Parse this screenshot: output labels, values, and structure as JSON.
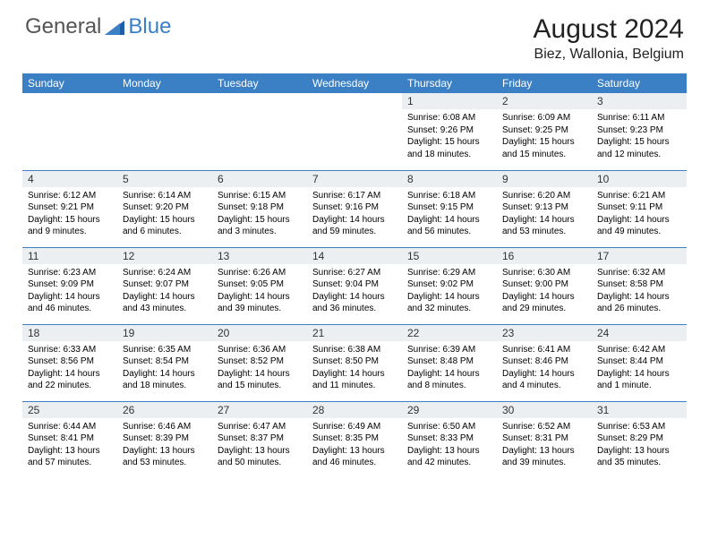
{
  "logo": {
    "text1": "General",
    "text2": "Blue"
  },
  "title": "August 2024",
  "location": "Biez, Wallonia, Belgium",
  "colors": {
    "header_bg": "#3b7fc4",
    "header_text": "#ffffff",
    "daynum_bg": "#eceff1",
    "border": "#3b7fc4",
    "page_bg": "#ffffff",
    "text": "#000000"
  },
  "weekdays": [
    "Sunday",
    "Monday",
    "Tuesday",
    "Wednesday",
    "Thursday",
    "Friday",
    "Saturday"
  ],
  "weeks": [
    [
      {
        "n": "",
        "sr": "",
        "ss": "",
        "dl": ""
      },
      {
        "n": "",
        "sr": "",
        "ss": "",
        "dl": ""
      },
      {
        "n": "",
        "sr": "",
        "ss": "",
        "dl": ""
      },
      {
        "n": "",
        "sr": "",
        "ss": "",
        "dl": ""
      },
      {
        "n": "1",
        "sr": "Sunrise: 6:08 AM",
        "ss": "Sunset: 9:26 PM",
        "dl": "Daylight: 15 hours and 18 minutes."
      },
      {
        "n": "2",
        "sr": "Sunrise: 6:09 AM",
        "ss": "Sunset: 9:25 PM",
        "dl": "Daylight: 15 hours and 15 minutes."
      },
      {
        "n": "3",
        "sr": "Sunrise: 6:11 AM",
        "ss": "Sunset: 9:23 PM",
        "dl": "Daylight: 15 hours and 12 minutes."
      }
    ],
    [
      {
        "n": "4",
        "sr": "Sunrise: 6:12 AM",
        "ss": "Sunset: 9:21 PM",
        "dl": "Daylight: 15 hours and 9 minutes."
      },
      {
        "n": "5",
        "sr": "Sunrise: 6:14 AM",
        "ss": "Sunset: 9:20 PM",
        "dl": "Daylight: 15 hours and 6 minutes."
      },
      {
        "n": "6",
        "sr": "Sunrise: 6:15 AM",
        "ss": "Sunset: 9:18 PM",
        "dl": "Daylight: 15 hours and 3 minutes."
      },
      {
        "n": "7",
        "sr": "Sunrise: 6:17 AM",
        "ss": "Sunset: 9:16 PM",
        "dl": "Daylight: 14 hours and 59 minutes."
      },
      {
        "n": "8",
        "sr": "Sunrise: 6:18 AM",
        "ss": "Sunset: 9:15 PM",
        "dl": "Daylight: 14 hours and 56 minutes."
      },
      {
        "n": "9",
        "sr": "Sunrise: 6:20 AM",
        "ss": "Sunset: 9:13 PM",
        "dl": "Daylight: 14 hours and 53 minutes."
      },
      {
        "n": "10",
        "sr": "Sunrise: 6:21 AM",
        "ss": "Sunset: 9:11 PM",
        "dl": "Daylight: 14 hours and 49 minutes."
      }
    ],
    [
      {
        "n": "11",
        "sr": "Sunrise: 6:23 AM",
        "ss": "Sunset: 9:09 PM",
        "dl": "Daylight: 14 hours and 46 minutes."
      },
      {
        "n": "12",
        "sr": "Sunrise: 6:24 AM",
        "ss": "Sunset: 9:07 PM",
        "dl": "Daylight: 14 hours and 43 minutes."
      },
      {
        "n": "13",
        "sr": "Sunrise: 6:26 AM",
        "ss": "Sunset: 9:05 PM",
        "dl": "Daylight: 14 hours and 39 minutes."
      },
      {
        "n": "14",
        "sr": "Sunrise: 6:27 AM",
        "ss": "Sunset: 9:04 PM",
        "dl": "Daylight: 14 hours and 36 minutes."
      },
      {
        "n": "15",
        "sr": "Sunrise: 6:29 AM",
        "ss": "Sunset: 9:02 PM",
        "dl": "Daylight: 14 hours and 32 minutes."
      },
      {
        "n": "16",
        "sr": "Sunrise: 6:30 AM",
        "ss": "Sunset: 9:00 PM",
        "dl": "Daylight: 14 hours and 29 minutes."
      },
      {
        "n": "17",
        "sr": "Sunrise: 6:32 AM",
        "ss": "Sunset: 8:58 PM",
        "dl": "Daylight: 14 hours and 26 minutes."
      }
    ],
    [
      {
        "n": "18",
        "sr": "Sunrise: 6:33 AM",
        "ss": "Sunset: 8:56 PM",
        "dl": "Daylight: 14 hours and 22 minutes."
      },
      {
        "n": "19",
        "sr": "Sunrise: 6:35 AM",
        "ss": "Sunset: 8:54 PM",
        "dl": "Daylight: 14 hours and 18 minutes."
      },
      {
        "n": "20",
        "sr": "Sunrise: 6:36 AM",
        "ss": "Sunset: 8:52 PM",
        "dl": "Daylight: 14 hours and 15 minutes."
      },
      {
        "n": "21",
        "sr": "Sunrise: 6:38 AM",
        "ss": "Sunset: 8:50 PM",
        "dl": "Daylight: 14 hours and 11 minutes."
      },
      {
        "n": "22",
        "sr": "Sunrise: 6:39 AM",
        "ss": "Sunset: 8:48 PM",
        "dl": "Daylight: 14 hours and 8 minutes."
      },
      {
        "n": "23",
        "sr": "Sunrise: 6:41 AM",
        "ss": "Sunset: 8:46 PM",
        "dl": "Daylight: 14 hours and 4 minutes."
      },
      {
        "n": "24",
        "sr": "Sunrise: 6:42 AM",
        "ss": "Sunset: 8:44 PM",
        "dl": "Daylight: 14 hours and 1 minute."
      }
    ],
    [
      {
        "n": "25",
        "sr": "Sunrise: 6:44 AM",
        "ss": "Sunset: 8:41 PM",
        "dl": "Daylight: 13 hours and 57 minutes."
      },
      {
        "n": "26",
        "sr": "Sunrise: 6:46 AM",
        "ss": "Sunset: 8:39 PM",
        "dl": "Daylight: 13 hours and 53 minutes."
      },
      {
        "n": "27",
        "sr": "Sunrise: 6:47 AM",
        "ss": "Sunset: 8:37 PM",
        "dl": "Daylight: 13 hours and 50 minutes."
      },
      {
        "n": "28",
        "sr": "Sunrise: 6:49 AM",
        "ss": "Sunset: 8:35 PM",
        "dl": "Daylight: 13 hours and 46 minutes."
      },
      {
        "n": "29",
        "sr": "Sunrise: 6:50 AM",
        "ss": "Sunset: 8:33 PM",
        "dl": "Daylight: 13 hours and 42 minutes."
      },
      {
        "n": "30",
        "sr": "Sunrise: 6:52 AM",
        "ss": "Sunset: 8:31 PM",
        "dl": "Daylight: 13 hours and 39 minutes."
      },
      {
        "n": "31",
        "sr": "Sunrise: 6:53 AM",
        "ss": "Sunset: 8:29 PM",
        "dl": "Daylight: 13 hours and 35 minutes."
      }
    ]
  ]
}
